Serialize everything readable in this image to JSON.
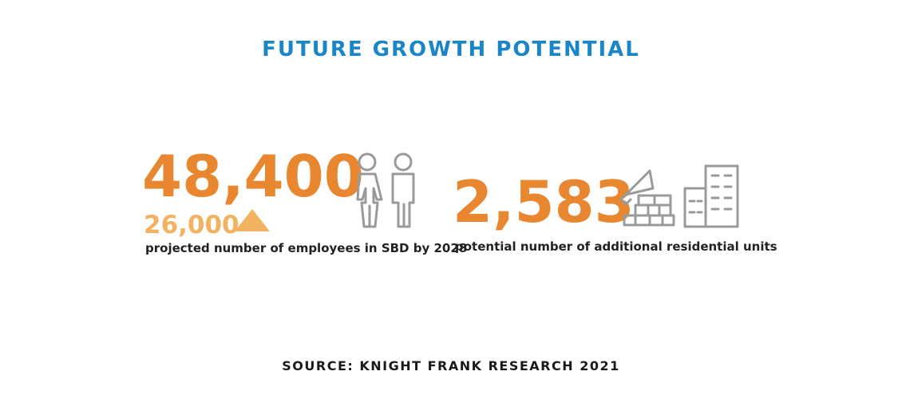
{
  "title": "FUTURE GROWTH POTENTIAL",
  "stats": [
    {
      "value": "48,400",
      "previous": "26,000",
      "description": "projected number of employees in SBD by 2028"
    },
    {
      "value": "2,583",
      "description": "potential number of additional residential units"
    }
  ],
  "source": "SOURCE: KNIGHT FRANK RESEARCH 2021"
}
